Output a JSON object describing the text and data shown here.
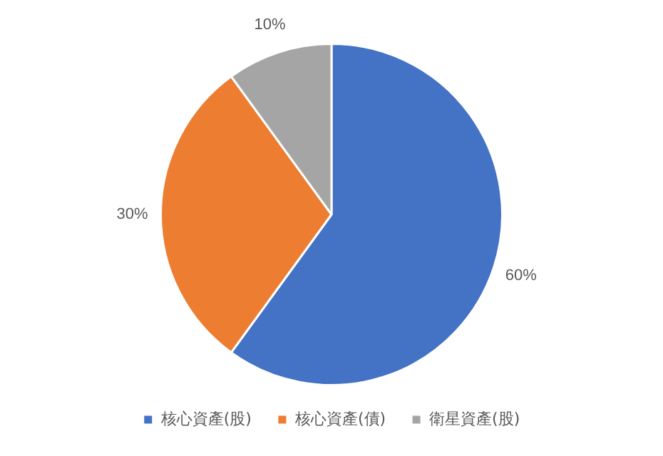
{
  "chart_data": {
    "type": "pie",
    "categories": [
      "核心資產(股)",
      "核心資產(債)",
      "衛星資產(股)"
    ],
    "values": [
      60,
      30,
      10
    ],
    "colors": [
      "#4472c4",
      "#ed7d31",
      "#a5a5a5"
    ],
    "value_labels": [
      "60%",
      "30%",
      "10%"
    ],
    "legend": "bottom"
  }
}
